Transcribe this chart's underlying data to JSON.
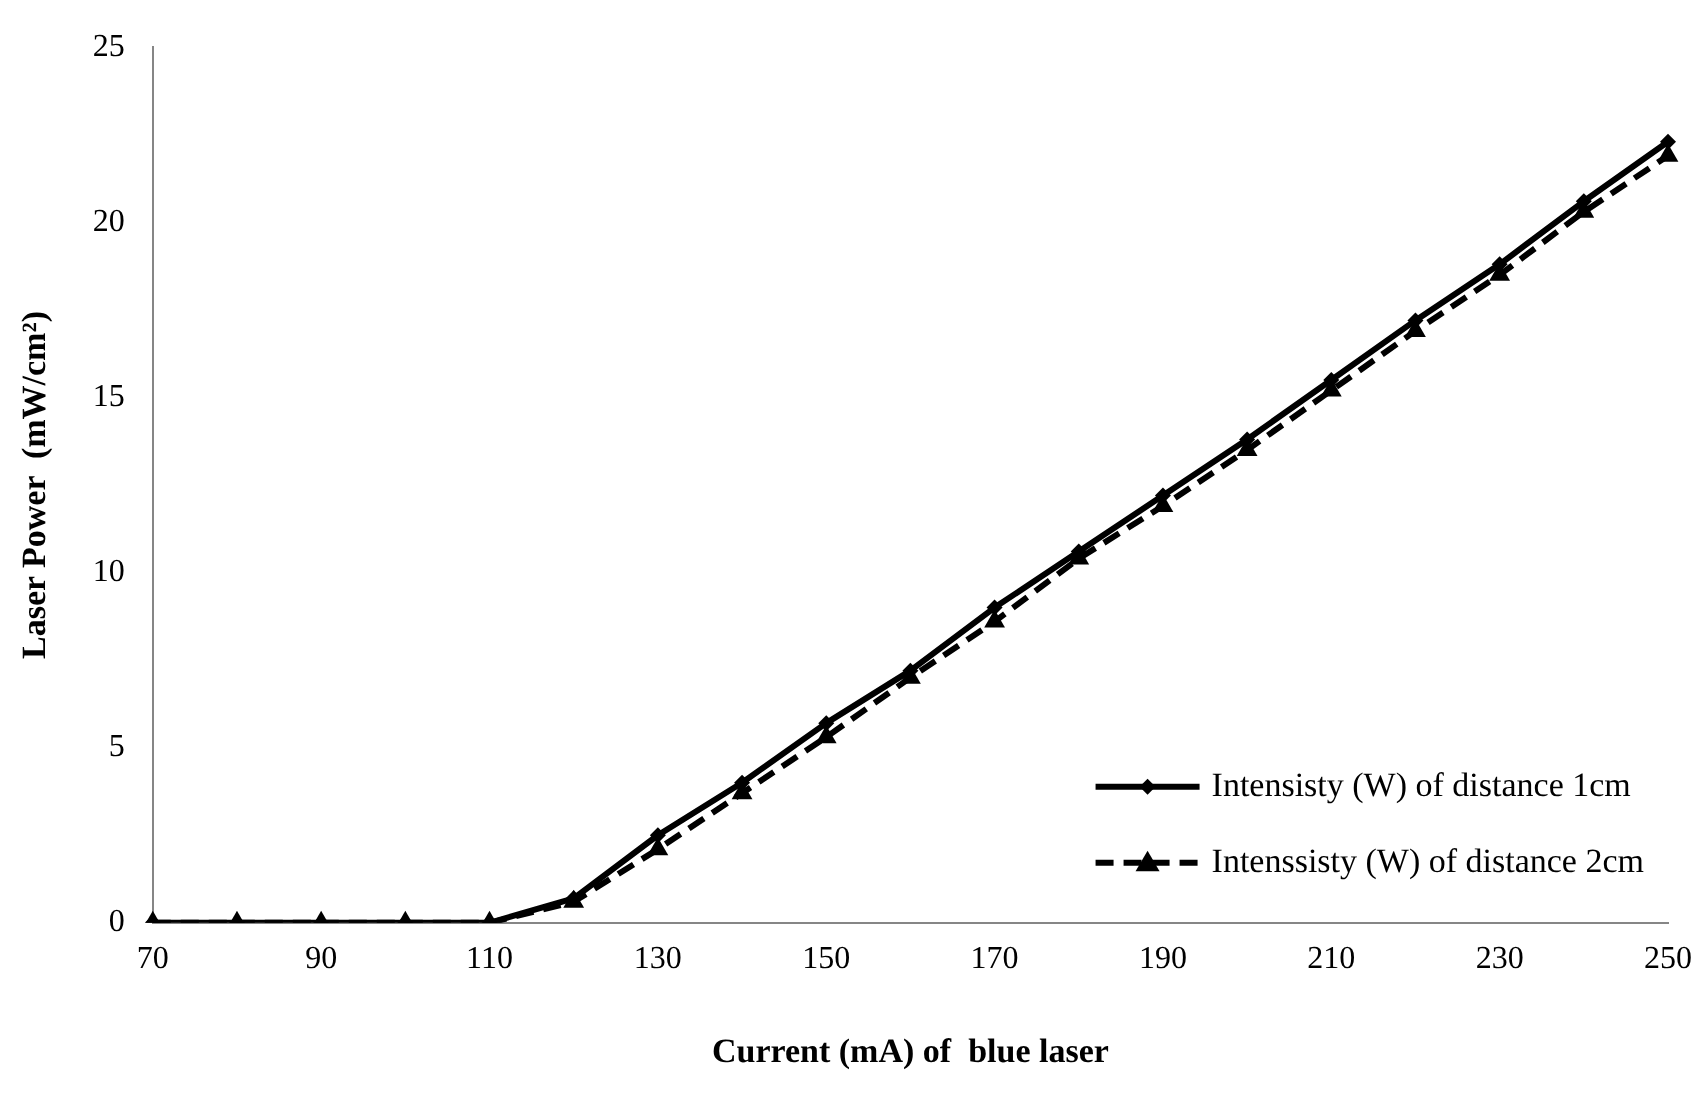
{
  "chart_data": {
    "type": "line",
    "xlabel": "Current (mA) of  blue laser",
    "ylabel": "Laser Power  (mW/cm²)",
    "categories": [
      "70",
      null,
      "90",
      null,
      "110",
      null,
      "130",
      null,
      "150",
      null,
      "170",
      null,
      "190",
      null,
      "210",
      null,
      "230",
      null,
      "250"
    ],
    "ylim": [
      0,
      25
    ],
    "yticks": [
      0,
      5,
      10,
      15,
      20,
      25
    ],
    "grid": false,
    "legend": "bottom right",
    "series": [
      {
        "name": "Intensisty (W) of distance 1cm",
        "color": "#000000",
        "marker": "diamond",
        "line_style": "solid",
        "values": [
          0,
          0,
          0,
          0,
          0,
          0.7,
          2.5,
          4.0,
          5.7,
          7.2,
          9.0,
          10.6,
          12.2,
          13.8,
          15.5,
          17.2,
          18.8,
          20.6,
          22.3
        ]
      },
      {
        "name": "Intenssisty (W) of distance 2cm",
        "color": "#000000",
        "marker": "triangle",
        "line_style": "dashed",
        "values": [
          0,
          0,
          0,
          0,
          0,
          0.6,
          2.1,
          3.7,
          5.3,
          7.0,
          8.6,
          10.4,
          11.9,
          13.5,
          15.2,
          16.9,
          18.5,
          20.3,
          21.9
        ]
      }
    ]
  }
}
